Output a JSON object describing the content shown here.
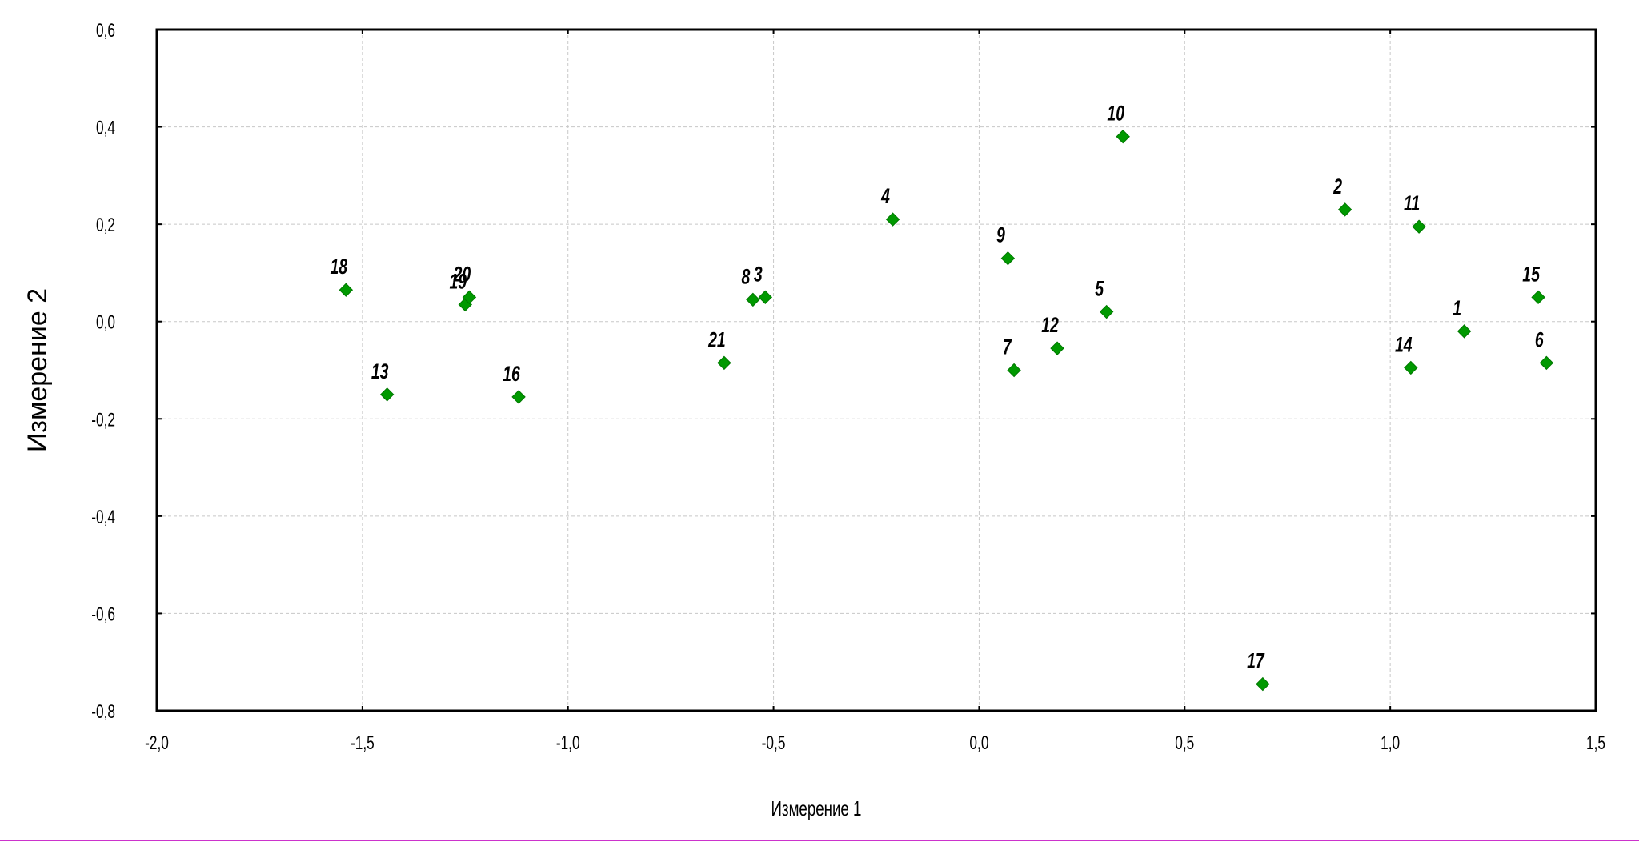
{
  "chart_data": {
    "type": "scatter",
    "title": "",
    "xlabel": "Измерение 1",
    "ylabel": "Измерение 2",
    "xlim": [
      -2.0,
      1.5
    ],
    "ylim": [
      -0.8,
      0.6
    ],
    "xticks": [
      -2.0,
      -1.5,
      -1.0,
      -0.5,
      0.0,
      0.5,
      1.0,
      1.5
    ],
    "yticks": [
      -0.8,
      -0.6,
      -0.4,
      -0.2,
      0.0,
      0.2,
      0.4,
      0.6
    ],
    "xtick_labels": [
      "-2,0",
      "-1,5",
      "-1,0",
      "-0,5",
      "0,0",
      "0,5",
      "1,0",
      "1,5"
    ],
    "ytick_labels": [
      "-0,8",
      "-0,6",
      "-0,4",
      "-0,2",
      "0,0",
      "0,2",
      "0,4",
      "0,6"
    ],
    "grid": true,
    "marker": "diamond",
    "marker_color": "#009900",
    "points": [
      {
        "label": "1",
        "x": 1.18,
        "y": -0.02
      },
      {
        "label": "2",
        "x": 0.89,
        "y": 0.23
      },
      {
        "label": "3",
        "x": -0.52,
        "y": 0.05
      },
      {
        "label": "4",
        "x": -0.21,
        "y": 0.21
      },
      {
        "label": "5",
        "x": 0.31,
        "y": 0.02
      },
      {
        "label": "6",
        "x": 1.38,
        "y": -0.085
      },
      {
        "label": "7",
        "x": 0.085,
        "y": -0.1
      },
      {
        "label": "8",
        "x": -0.55,
        "y": 0.045
      },
      {
        "label": "9",
        "x": 0.07,
        "y": 0.13
      },
      {
        "label": "10",
        "x": 0.35,
        "y": 0.38
      },
      {
        "label": "11",
        "x": 1.07,
        "y": 0.195
      },
      {
        "label": "12",
        "x": 0.19,
        "y": -0.055
      },
      {
        "label": "13",
        "x": -1.44,
        "y": -0.15
      },
      {
        "label": "14",
        "x": 1.05,
        "y": -0.095
      },
      {
        "label": "15",
        "x": 1.36,
        "y": 0.05
      },
      {
        "label": "16",
        "x": -1.12,
        "y": -0.155
      },
      {
        "label": "17",
        "x": 0.69,
        "y": -0.745
      },
      {
        "label": "18",
        "x": -1.54,
        "y": 0.065
      },
      {
        "label": "19",
        "x": -1.25,
        "y": 0.035
      },
      {
        "label": "20",
        "x": -1.24,
        "y": 0.05
      },
      {
        "label": "21",
        "x": -0.62,
        "y": -0.085
      }
    ]
  }
}
